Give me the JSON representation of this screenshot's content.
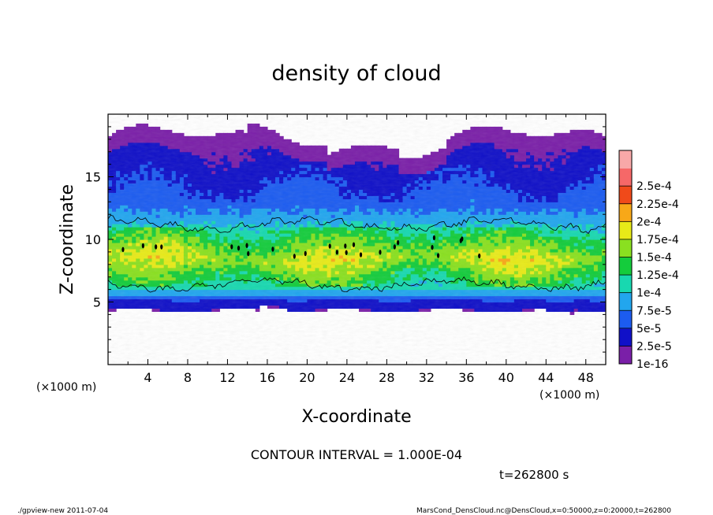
{
  "chart_data": {
    "type": "heatmap",
    "title": "density of cloud",
    "xlabel": "X-coordinate",
    "ylabel": "Z-coordinate",
    "x_unit": "(×1000 m)",
    "x_unit_right": "(×1000 m)",
    "x_ticks": [
      "4",
      "8",
      "12",
      "16",
      "20",
      "24",
      "28",
      "32",
      "36",
      "40",
      "44",
      "48"
    ],
    "y_ticks": [
      "5",
      "10",
      "15"
    ],
    "xlim": [
      0,
      50
    ],
    "ylim": [
      0,
      20
    ],
    "colorbar": {
      "labels": [
        "1e-16",
        "2.5e-5",
        "5e-5",
        "7.5e-5",
        "1e-4",
        "1.25e-4",
        "1.5e-4",
        "1.75e-4",
        "2e-4",
        "2.25e-4",
        "2.5e-4"
      ],
      "colors": [
        "#7a1fa8",
        "#1010c8",
        "#1c5cf0",
        "#22a6ee",
        "#18d8b0",
        "#14cc3c",
        "#8ae020",
        "#e8ea18",
        "#f8a818",
        "#f04a1a",
        "#f66868",
        "#f8a8a8"
      ]
    },
    "cloud_band": {
      "bottom_km": 4.3,
      "top_km": 18.5,
      "core_bottom_km": 7,
      "core_top_km": 10
    },
    "contour_interval_text": "CONTOUR INTERVAL = 1.000E-04",
    "time_text": "t=262800 s"
  },
  "footer": {
    "left": "./gpview-new  2011-07-04",
    "right": "MarsCond_DensCloud.nc@DensCloud,x=0:50000,z=0:20000,t=262800"
  }
}
